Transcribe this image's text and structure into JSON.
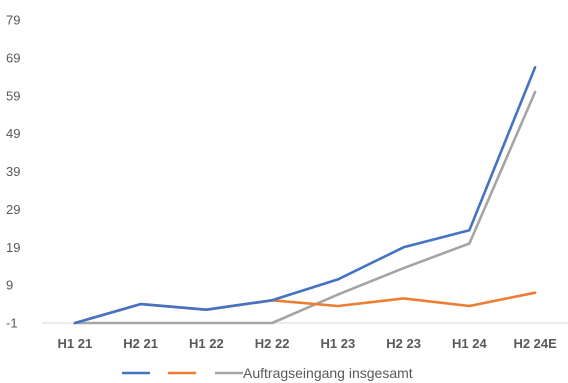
{
  "chart_data": {
    "type": "line",
    "categories": [
      "H1 21",
      "H2 21",
      "H1 22",
      "H2 22",
      "H1 23",
      "H2 23",
      "H1 24",
      "H2 24E"
    ],
    "series": [
      {
        "name": "",
        "color": "#4472C4",
        "values": [
          -1,
          4,
          2.5,
          5,
          10.5,
          19,
          23.5,
          66.5
        ]
      },
      {
        "name": "",
        "color": "#ED7D31",
        "values": [
          -1,
          4,
          2.5,
          5,
          3.5,
          5.5,
          3.5,
          7
        ]
      },
      {
        "name": "Auftragseingang insgesamt",
        "color": "#A5A5A5",
        "values": [
          -1,
          -1,
          -1,
          -1,
          6.5,
          13.5,
          20,
          60
        ]
      }
    ],
    "yticks": [
      -1,
      9,
      19,
      29,
      39,
      49,
      59,
      69,
      79
    ],
    "ylim": [
      -1,
      79
    ],
    "grid": false,
    "legend_position": "bottom",
    "title": "",
    "xlabel": "",
    "ylabel": ""
  }
}
